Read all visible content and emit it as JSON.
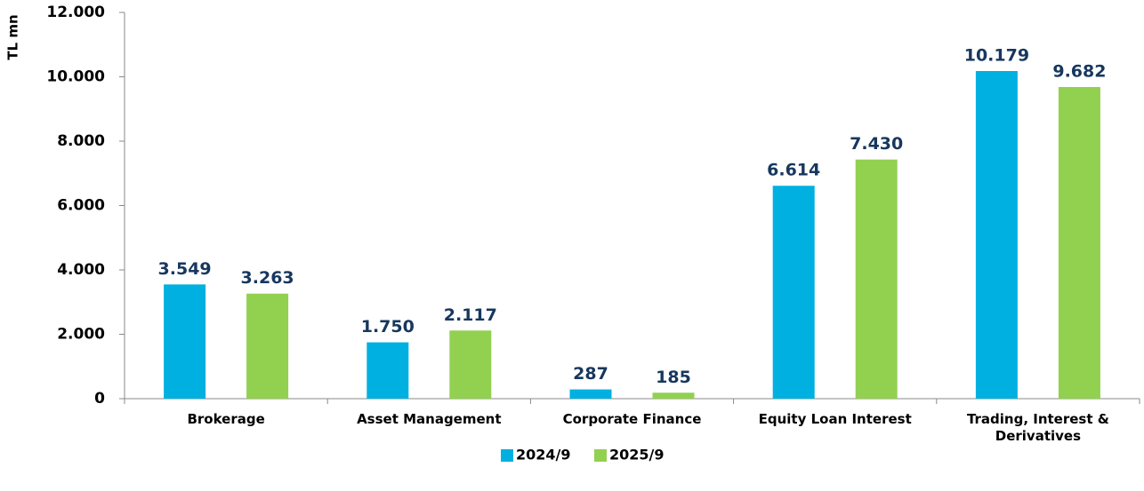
{
  "chart_data": {
    "type": "bar",
    "y_label": "TL mn",
    "categories": [
      "Brokerage",
      "Asset Management",
      "Corporate Finance",
      "Equity Loan Interest",
      "Trading, Interest & Derivatives"
    ],
    "series": [
      {
        "name": "2024/9",
        "color": "#00b0e0",
        "values": [
          3549,
          1750,
          287,
          6614,
          10179
        ],
        "value_labels": [
          "3.549",
          "1.750",
          "287",
          "6.614",
          "10.179"
        ]
      },
      {
        "name": "2025/9",
        "color": "#92d050",
        "values": [
          3263,
          2117,
          185,
          7430,
          9682
        ],
        "value_labels": [
          "3.263",
          "2.117",
          "185",
          "7.430",
          "9.682"
        ]
      }
    ],
    "ylim": [
      0,
      12000
    ],
    "yticks": [
      0,
      {
        "value": 2000,
        "label": "2.000"
      },
      {
        "value": 4000,
        "label": "4.000"
      },
      {
        "value": 6000,
        "label": "6.000"
      },
      {
        "value": 8000,
        "label": "8.000"
      },
      {
        "value": 10000,
        "label": "10.000"
      },
      {
        "value": 12000,
        "label": "12.000"
      }
    ],
    "legend": "bottom"
  }
}
